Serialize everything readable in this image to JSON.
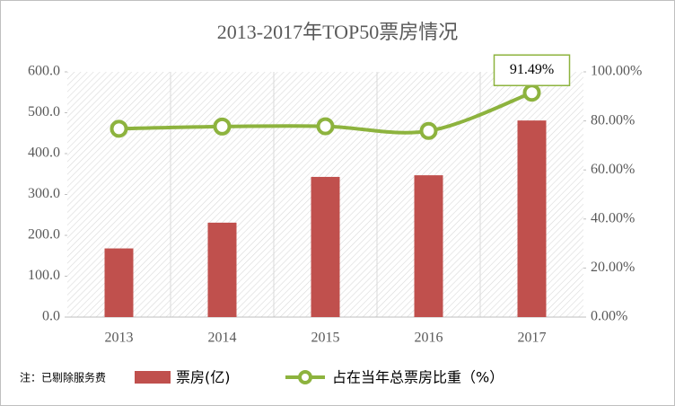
{
  "chart_data": {
    "type": "bar",
    "title": "2013-2017年TOP50票房情况",
    "categories": [
      "2013",
      "2014",
      "2015",
      "2016",
      "2017"
    ],
    "series": [
      {
        "name": "票房(亿)",
        "color": "#c0504d",
        "type": "bar",
        "values": [
          168,
          231,
          343,
          347,
          481
        ]
      },
      {
        "name": "占在当年总票房比重（%）",
        "color": "#8db33e",
        "type": "line",
        "axis": "y2",
        "values": [
          76.8,
          77.7,
          77.8,
          75.9,
          91.49
        ],
        "value_labels": [
          null,
          null,
          null,
          null,
          "91.49%"
        ]
      }
    ],
    "ylim": [
      0,
      600
    ],
    "yticks": [
      {
        "value": 0,
        "label": "0.0"
      },
      {
        "value": 100,
        "label": "100.0"
      },
      {
        "value": 200,
        "label": "200.0"
      },
      {
        "value": 300,
        "label": "300.0"
      },
      {
        "value": 400,
        "label": "400.0"
      },
      {
        "value": 500,
        "label": "500.0"
      },
      {
        "value": 600,
        "label": "600.0"
      }
    ],
    "y2lim": [
      0,
      100
    ],
    "y2ticks": [
      {
        "value": 0,
        "label": "0.00%"
      },
      {
        "value": 20,
        "label": "20.00%"
      },
      {
        "value": 40,
        "label": "40.00%"
      },
      {
        "value": 60,
        "label": "60.00%"
      },
      {
        "value": 80,
        "label": "80.00%"
      },
      {
        "value": 100,
        "label": "100.00%"
      }
    ],
    "note": "注：已剔除服务费",
    "grid": false
  }
}
